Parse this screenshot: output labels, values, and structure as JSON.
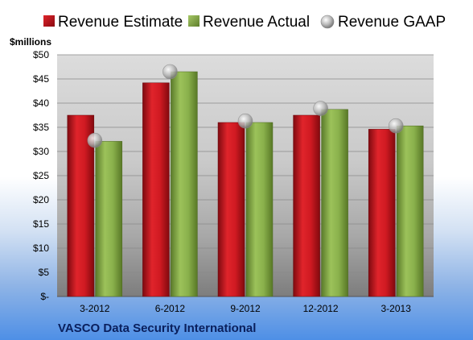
{
  "chart_data": {
    "type": "bar",
    "unit_label": "$millions",
    "footer": "VASCO Data Security International",
    "categories": [
      "3-2012",
      "6-2012",
      "9-2012",
      "12-2012",
      "3-2013"
    ],
    "series": [
      {
        "name": "Revenue Estimate",
        "kind": "bar",
        "color": "#c8141c",
        "values": [
          37.5,
          44.2,
          36.0,
          37.5,
          34.6
        ]
      },
      {
        "name": "Revenue Actual",
        "kind": "bar",
        "color": "#8ab14c",
        "values": [
          32.1,
          46.5,
          36.0,
          38.7,
          35.3
        ]
      },
      {
        "name": "Revenue GAAP",
        "kind": "marker",
        "color": "#b4b4b4",
        "values": [
          32.3,
          46.5,
          36.3,
          38.9,
          35.3
        ]
      }
    ],
    "ylim": [
      0,
      50
    ],
    "yticks": [
      0,
      5,
      10,
      15,
      20,
      25,
      30,
      35,
      40,
      45,
      50
    ],
    "ytick_labels": [
      "$-",
      "$5",
      "$10",
      "$15",
      "$20",
      "$25",
      "$30",
      "$35",
      "$40",
      "$45",
      "$50"
    ],
    "grid": true,
    "legend_position": "top"
  }
}
